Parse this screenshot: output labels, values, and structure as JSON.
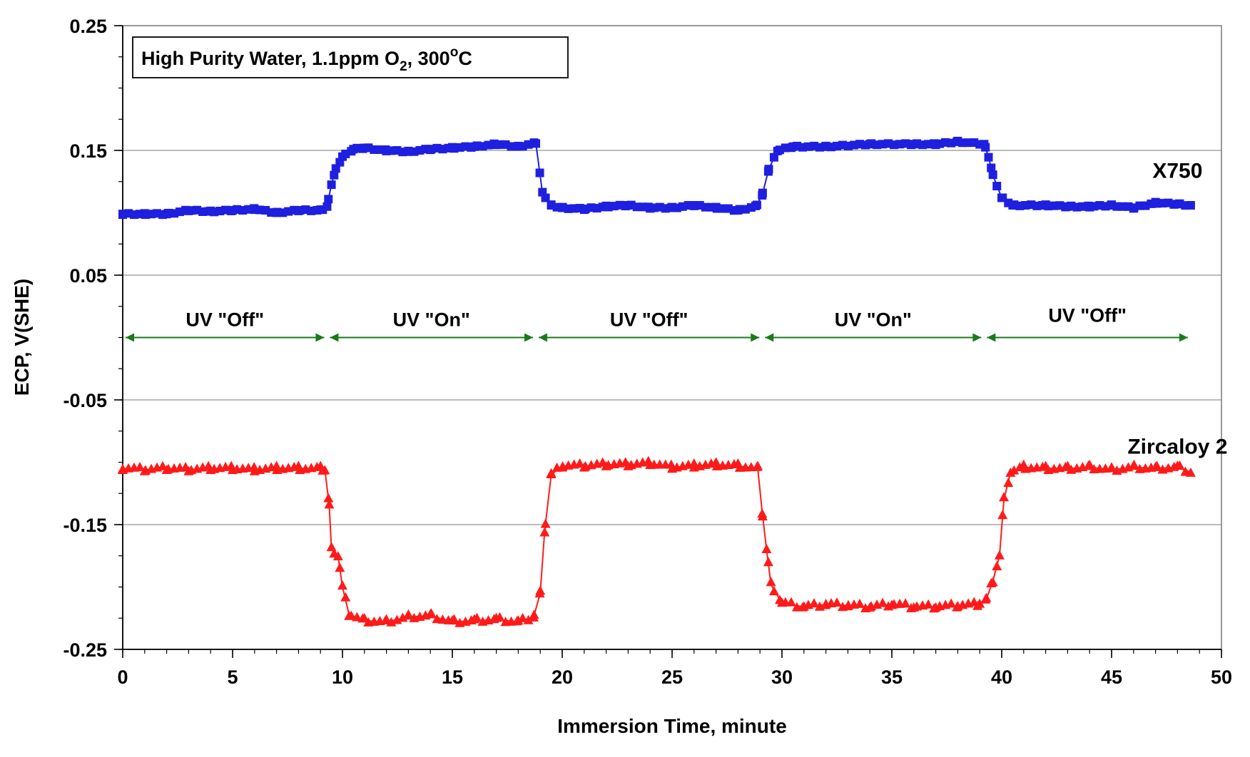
{
  "chart_data": {
    "type": "line",
    "title": "",
    "xlabel": "Immersion Time, minute",
    "ylabel": "ECP, V(SHE)",
    "xlim": [
      0,
      50
    ],
    "ylim": [
      -0.25,
      0.25
    ],
    "x_ticks": [
      "0",
      "5",
      "10",
      "15",
      "20",
      "25",
      "30",
      "35",
      "40",
      "45",
      "50"
    ],
    "y_ticks": [
      "0.25",
      "0.15",
      "0.05",
      "-0.05",
      "-0.15",
      "-0.25"
    ],
    "grid": "horizontal",
    "legend_box": {
      "text_main": "High Purity Water, 1.1ppm O",
      "subscript": "2",
      "text_mid": ", 300",
      "superscript": "o",
      "text_end": "C"
    },
    "phases": [
      {
        "label": "UV \"Off\"",
        "start": 0,
        "end": 9.3
      },
      {
        "label": "UV \"On\"",
        "start": 9.3,
        "end": 18.8
      },
      {
        "label": "UV \"Off\"",
        "start": 18.8,
        "end": 29.1
      },
      {
        "label": "UV \"On\"",
        "start": 29.1,
        "end": 39.2
      },
      {
        "label": "UV \"Off\"",
        "start": 39.2,
        "end": 48.6
      }
    ],
    "phase_y": 0.0,
    "phase_color": "#1a7a1a",
    "series": [
      {
        "name": "X750",
        "color": "#1f1fe0",
        "marker": "square",
        "label_pos": [
          48.0,
          0.128
        ],
        "points": [
          [
            0,
            0.099
          ],
          [
            1,
            0.099
          ],
          [
            2,
            0.099
          ],
          [
            3,
            0.102
          ],
          [
            4,
            0.101
          ],
          [
            5,
            0.102
          ],
          [
            6,
            0.103
          ],
          [
            7,
            0.1
          ],
          [
            8,
            0.102
          ],
          [
            9.0,
            0.102
          ],
          [
            9.3,
            0.105
          ],
          [
            9.5,
            0.123
          ],
          [
            9.7,
            0.135
          ],
          [
            10.0,
            0.145
          ],
          [
            10.5,
            0.151
          ],
          [
            11,
            0.152
          ],
          [
            12,
            0.15
          ],
          [
            13,
            0.149
          ],
          [
            14,
            0.151
          ],
          [
            15,
            0.152
          ],
          [
            16,
            0.153
          ],
          [
            17,
            0.155
          ],
          [
            18,
            0.153
          ],
          [
            18.8,
            0.156
          ],
          [
            19.1,
            0.116
          ],
          [
            19.5,
            0.106
          ],
          [
            20,
            0.104
          ],
          [
            21,
            0.103
          ],
          [
            22,
            0.105
          ],
          [
            23,
            0.106
          ],
          [
            24,
            0.104
          ],
          [
            25,
            0.104
          ],
          [
            26,
            0.106
          ],
          [
            27,
            0.104
          ],
          [
            28,
            0.102
          ],
          [
            28.8,
            0.105
          ],
          [
            29.1,
            0.114
          ],
          [
            29.4,
            0.135
          ],
          [
            29.8,
            0.15
          ],
          [
            30.5,
            0.153
          ],
          [
            32,
            0.153
          ],
          [
            34,
            0.155
          ],
          [
            36,
            0.155
          ],
          [
            37,
            0.155
          ],
          [
            38,
            0.157
          ],
          [
            39.2,
            0.155
          ],
          [
            39.4,
            0.145
          ],
          [
            39.6,
            0.13
          ],
          [
            40.0,
            0.112
          ],
          [
            40.5,
            0.106
          ],
          [
            42,
            0.106
          ],
          [
            43,
            0.105
          ],
          [
            44,
            0.105
          ],
          [
            45,
            0.106
          ],
          [
            46,
            0.104
          ],
          [
            47,
            0.108
          ],
          [
            48,
            0.107
          ],
          [
            48.6,
            0.106
          ]
        ]
      },
      {
        "name": "Zircaloy 2",
        "color": "#ff1a1a",
        "marker": "triangle",
        "label_pos": [
          48.0,
          -0.093
        ],
        "points": [
          [
            0,
            -0.105
          ],
          [
            1,
            -0.106
          ],
          [
            2,
            -0.105
          ],
          [
            3,
            -0.106
          ],
          [
            4,
            -0.105
          ],
          [
            5,
            -0.105
          ],
          [
            6,
            -0.106
          ],
          [
            7,
            -0.105
          ],
          [
            8,
            -0.105
          ],
          [
            9.0,
            -0.105
          ],
          [
            9.2,
            -0.106
          ],
          [
            9.4,
            -0.135
          ],
          [
            9.5,
            -0.17
          ],
          [
            9.8,
            -0.175
          ],
          [
            10.0,
            -0.2
          ],
          [
            10.3,
            -0.222
          ],
          [
            11,
            -0.227
          ],
          [
            12,
            -0.228
          ],
          [
            13,
            -0.224
          ],
          [
            14,
            -0.223
          ],
          [
            15,
            -0.228
          ],
          [
            16,
            -0.227
          ],
          [
            17,
            -0.226
          ],
          [
            18,
            -0.228
          ],
          [
            18.7,
            -0.224
          ],
          [
            19.0,
            -0.205
          ],
          [
            19.2,
            -0.155
          ],
          [
            19.5,
            -0.11
          ],
          [
            20,
            -0.103
          ],
          [
            21,
            -0.103
          ],
          [
            22,
            -0.102
          ],
          [
            23,
            -0.102
          ],
          [
            24,
            -0.101
          ],
          [
            25,
            -0.104
          ],
          [
            26,
            -0.103
          ],
          [
            27,
            -0.102
          ],
          [
            28,
            -0.103
          ],
          [
            28.9,
            -0.105
          ],
          [
            29.1,
            -0.14
          ],
          [
            29.3,
            -0.17
          ],
          [
            29.5,
            -0.198
          ],
          [
            30.0,
            -0.213
          ],
          [
            31,
            -0.216
          ],
          [
            32,
            -0.214
          ],
          [
            33,
            -0.215
          ],
          [
            34,
            -0.216
          ],
          [
            35,
            -0.214
          ],
          [
            36,
            -0.216
          ],
          [
            37,
            -0.216
          ],
          [
            38,
            -0.215
          ],
          [
            38.9,
            -0.214
          ],
          [
            39.3,
            -0.21
          ],
          [
            39.6,
            -0.195
          ],
          [
            39.9,
            -0.175
          ],
          [
            40.1,
            -0.13
          ],
          [
            40.4,
            -0.108
          ],
          [
            41,
            -0.104
          ],
          [
            42,
            -0.105
          ],
          [
            43,
            -0.105
          ],
          [
            44,
            -0.104
          ],
          [
            45,
            -0.106
          ],
          [
            46,
            -0.104
          ],
          [
            47,
            -0.105
          ],
          [
            48,
            -0.104
          ],
          [
            48.6,
            -0.108
          ]
        ]
      }
    ]
  }
}
